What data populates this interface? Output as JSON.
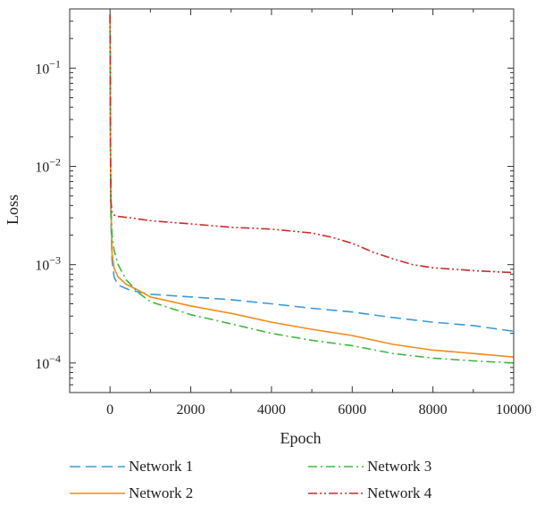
{
  "chart_data": {
    "type": "line",
    "title": "",
    "xlabel": "Epoch",
    "ylabel": "Loss",
    "xlim": [
      -1000,
      10000
    ],
    "ylim": [
      5e-05,
      0.4
    ],
    "yscale": "log",
    "grid": false,
    "legend_position": "bottom",
    "x_ticks": [
      0,
      2000,
      4000,
      6000,
      8000,
      10000
    ],
    "x_tick_labels": [
      "0",
      "2000",
      "4000",
      "6000",
      "8000",
      "10000"
    ],
    "y_ticks": [
      0.0001,
      0.001,
      0.01,
      0.1
    ],
    "y_tick_labels": [
      {
        "base": "10",
        "exp": "−4"
      },
      {
        "base": "10",
        "exp": "−3"
      },
      {
        "base": "10",
        "exp": "−2"
      },
      {
        "base": "10",
        "exp": "−1"
      }
    ],
    "series": [
      {
        "name": "Network 1",
        "color": "#3a9ad9",
        "dash": "12,6",
        "x": [
          0,
          5,
          10,
          20,
          50,
          100,
          200,
          500,
          1000,
          2000,
          3000,
          4000,
          5000,
          6000,
          7000,
          8000,
          9000,
          10000
        ],
        "y": [
          0.35,
          0.1,
          0.02,
          0.003,
          0.0011,
          0.00075,
          0.00062,
          0.00055,
          0.0005,
          0.00047,
          0.00044,
          0.0004,
          0.00036,
          0.00033,
          0.00029,
          0.00026,
          0.00024,
          0.00021
        ]
      },
      {
        "name": "Network 2",
        "color": "#f28c1a",
        "dash": "",
        "x": [
          0,
          5,
          10,
          20,
          50,
          100,
          200,
          400,
          700,
          1000,
          2000,
          3000,
          4000,
          5000,
          6000,
          7000,
          8000,
          9000,
          10000
        ],
        "y": [
          0.35,
          0.1,
          0.02,
          0.004,
          0.0013,
          0.00092,
          0.00075,
          0.00063,
          0.00055,
          0.00047,
          0.00038,
          0.00032,
          0.00026,
          0.00022,
          0.00019,
          0.000155,
          0.000135,
          0.000125,
          0.000115
        ]
      },
      {
        "name": "Network 3",
        "color": "#3db83d",
        "dash": "10,4,2,4",
        "x": [
          0,
          5,
          10,
          20,
          50,
          100,
          200,
          400,
          700,
          1000,
          2000,
          3000,
          4000,
          5000,
          6000,
          7000,
          8000,
          9000,
          10000
        ],
        "y": [
          0.35,
          0.1,
          0.02,
          0.0042,
          0.002,
          0.0014,
          0.001,
          0.0007,
          0.00052,
          0.00042,
          0.00031,
          0.00025,
          0.0002,
          0.00017,
          0.00015,
          0.000125,
          0.000112,
          0.000105,
          0.0001
        ]
      },
      {
        "name": "Network 4",
        "color": "#cc2a2a",
        "dash": "10,3,2,3,2,3",
        "x": [
          0,
          5,
          10,
          20,
          50,
          100,
          200,
          500,
          1000,
          2000,
          3000,
          4000,
          5000,
          5500,
          6000,
          6500,
          7000,
          7500,
          8000,
          9000,
          10000
        ],
        "y": [
          0.35,
          0.1,
          0.02,
          0.0045,
          0.0034,
          0.0032,
          0.0031,
          0.003,
          0.0028,
          0.0026,
          0.0024,
          0.0023,
          0.0021,
          0.0019,
          0.00165,
          0.00135,
          0.00115,
          0.001,
          0.00093,
          0.00087,
          0.00083
        ]
      }
    ]
  }
}
